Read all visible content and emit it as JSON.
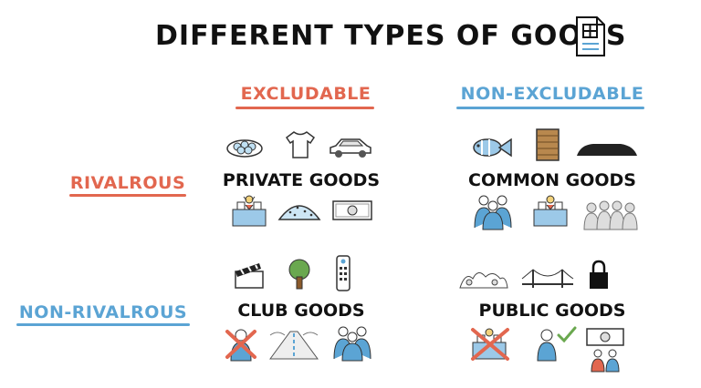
{
  "title": "DIFFERENT TYPES OF GOODS",
  "columns": {
    "excludable": "EXCLUDABLE",
    "non_excludable": "NON-EXCLUDABLE"
  },
  "rows": {
    "rivalrous": "RIVALROUS",
    "non_rivalrous": "NON-RIVALROUS"
  },
  "cells": {
    "private": "PRIVATE GOODS",
    "common": "COMMON GOODS",
    "club": "CLUB GOODS",
    "public": "PUBLIC GOODS"
  },
  "colors": {
    "excludable": "#e2674f",
    "non_excludable": "#5ba4d4"
  },
  "icons": {
    "private_top": [
      "plate-of-food-icon",
      "t-shirt-icon",
      "car-icon"
    ],
    "private_bottom": [
      "market-stall-icon",
      "cake-icon",
      "dollar-bill-icon"
    ],
    "common_top": [
      "fish-icon",
      "wooden-plank-icon",
      "rock-formation-icon"
    ],
    "common_bottom": [
      "people-group-icon",
      "market-stall-icon",
      "crowd-icon"
    ],
    "club_top": [
      "clapperboard-icon",
      "tree-icon",
      "remote-control-icon"
    ],
    "club_bottom": [
      "crossed-out-person-icon",
      "road-icon",
      "people-group-icon"
    ],
    "public_top": [
      "landscape-icon",
      "bridge-icon",
      "padlock-icon"
    ],
    "public_bottom": [
      "crossed-out-market-stall-icon",
      "person-check-icon",
      "dollar-bill-people-icon"
    ]
  }
}
